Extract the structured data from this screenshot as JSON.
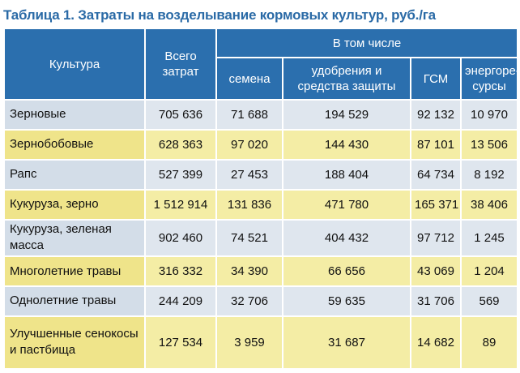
{
  "title": "Таблица 1. Затраты на возделывание кормовых культур, руб./га",
  "header": {
    "culture": "Культура",
    "total": "Всего затрат",
    "including": "В том числе",
    "sub": [
      "семена",
      "удобрения и средства защиты",
      "ГСМ",
      "энергоре-сурсы"
    ]
  },
  "rows": [
    {
      "name": "Зерновые",
      "total": "705 636",
      "seeds": "71 688",
      "fert": "194 529",
      "fuel": "92 132",
      "energy": "10 970"
    },
    {
      "name": "Зернобобовые",
      "total": "628 363",
      "seeds": "97 020",
      "fert": "144 430",
      "fuel": "87 101",
      "energy": "13 506"
    },
    {
      "name": "Рапс",
      "total": "527 399",
      "seeds": "27 453",
      "fert": "188 404",
      "fuel": "64 734",
      "energy": "8 192"
    },
    {
      "name": "Кукуруза, зерно",
      "total": "1 512 914",
      "seeds": "131 836",
      "fert": "471 780",
      "fuel": "165 371",
      "energy": "38 406"
    },
    {
      "name": "Кукуруза, зеленая масса",
      "total": "902 460",
      "seeds": "74 521",
      "fert": "404 432",
      "fuel": "97 712",
      "energy": "1 245"
    },
    {
      "name": "Многолетние травы",
      "total": "316 332",
      "seeds": "34 390",
      "fert": "66 656",
      "fuel": "43 069",
      "energy": "1 204"
    },
    {
      "name": "Однолетние травы",
      "total": "244 209",
      "seeds": "32 706",
      "fert": "59 635",
      "fuel": "31 706",
      "energy": "569"
    },
    {
      "name": "Улучшенные сенокосы и пастбища",
      "total": "127 534",
      "seeds": "3 959",
      "fert": "31 687",
      "fuel": "14 682",
      "energy": "89"
    }
  ],
  "colors": {
    "header": "#2b6fae",
    "title": "#2a6aa6",
    "row_odd": "#dfe6ee",
    "row_even": "#f4eda5"
  }
}
